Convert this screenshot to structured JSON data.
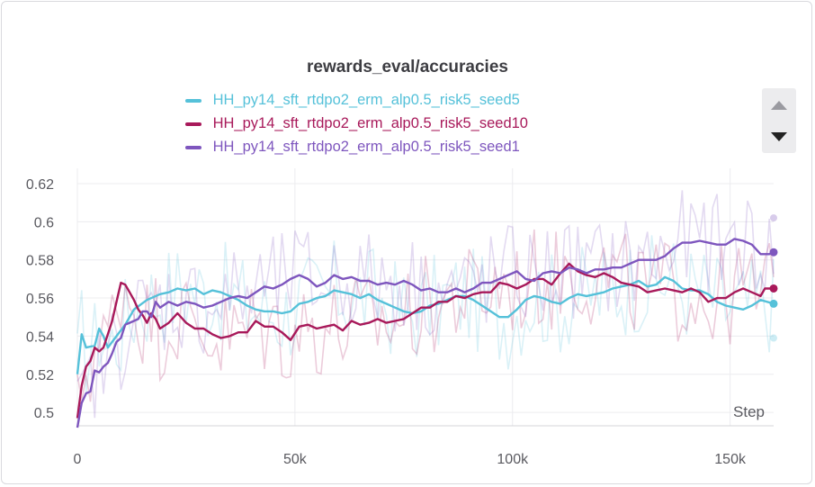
{
  "chart_data": {
    "type": "line",
    "title": "rewards_eval/accuracies",
    "xlabel": "Step",
    "ylabel": "",
    "xlim": [
      0,
      160000
    ],
    "ylim": [
      0.493,
      0.628
    ],
    "x_ticks": [
      {
        "value": 0,
        "label": "0"
      },
      {
        "value": 50000,
        "label": "50k"
      },
      {
        "value": 100000,
        "label": "100k"
      },
      {
        "value": 150000,
        "label": "150k"
      }
    ],
    "y_ticks": [
      {
        "value": 0.5,
        "label": "0.5"
      },
      {
        "value": 0.52,
        "label": "0.52"
      },
      {
        "value": 0.54,
        "label": "0.54"
      },
      {
        "value": 0.56,
        "label": "0.56"
      },
      {
        "value": 0.58,
        "label": "0.58"
      },
      {
        "value": 0.6,
        "label": "0.6"
      },
      {
        "value": 0.62,
        "label": "0.62"
      }
    ],
    "grid": true,
    "legend_position": "top",
    "series": [
      {
        "name": "HH_py14_sft_rtdpo2_erm_alp0.5_risk5_seed5",
        "color": "#55c1d9",
        "smoothed": [
          [
            0,
            0.52
          ],
          [
            1000,
            0.541
          ],
          [
            2000,
            0.534
          ],
          [
            4000,
            0.535
          ],
          [
            5000,
            0.544
          ],
          [
            6000,
            0.54
          ],
          [
            7000,
            0.534
          ],
          [
            9000,
            0.54
          ],
          [
            11000,
            0.546
          ],
          [
            13000,
            0.554
          ],
          [
            16000,
            0.559
          ],
          [
            19000,
            0.562
          ],
          [
            21000,
            0.563
          ],
          [
            23000,
            0.565
          ],
          [
            25000,
            0.564
          ],
          [
            27000,
            0.565
          ],
          [
            29000,
            0.562
          ],
          [
            31000,
            0.564
          ],
          [
            33000,
            0.563
          ],
          [
            35000,
            0.561
          ],
          [
            37000,
            0.559
          ],
          [
            39000,
            0.556
          ],
          [
            41000,
            0.554
          ],
          [
            43000,
            0.553
          ],
          [
            45000,
            0.553
          ],
          [
            47000,
            0.552
          ],
          [
            49000,
            0.553
          ],
          [
            51000,
            0.557
          ],
          [
            53000,
            0.558
          ],
          [
            55000,
            0.56
          ],
          [
            57000,
            0.561
          ],
          [
            59000,
            0.564
          ],
          [
            61000,
            0.563
          ],
          [
            63000,
            0.562
          ],
          [
            65000,
            0.56
          ],
          [
            67000,
            0.562
          ],
          [
            69000,
            0.559
          ],
          [
            71000,
            0.557
          ],
          [
            73000,
            0.555
          ],
          [
            75000,
            0.553
          ],
          [
            77000,
            0.552
          ],
          [
            79000,
            0.553
          ],
          [
            81000,
            0.556
          ],
          [
            83000,
            0.557
          ],
          [
            85000,
            0.559
          ],
          [
            87000,
            0.561
          ],
          [
            89000,
            0.561
          ],
          [
            91000,
            0.559
          ],
          [
            93000,
            0.556
          ],
          [
            95000,
            0.553
          ],
          [
            97000,
            0.55
          ],
          [
            99000,
            0.55
          ],
          [
            101000,
            0.554
          ],
          [
            103000,
            0.559
          ],
          [
            105000,
            0.561
          ],
          [
            107000,
            0.56
          ],
          [
            109000,
            0.558
          ],
          [
            111000,
            0.557
          ],
          [
            113000,
            0.56
          ],
          [
            115000,
            0.562
          ],
          [
            117000,
            0.561
          ],
          [
            119000,
            0.562
          ],
          [
            121000,
            0.563
          ],
          [
            123000,
            0.565
          ],
          [
            125000,
            0.566
          ],
          [
            127000,
            0.567
          ],
          [
            129000,
            0.569
          ],
          [
            131000,
            0.566
          ],
          [
            133000,
            0.567
          ],
          [
            135000,
            0.571
          ],
          [
            137000,
            0.569
          ],
          [
            139000,
            0.565
          ],
          [
            141000,
            0.564
          ],
          [
            143000,
            0.564
          ],
          [
            145000,
            0.562
          ],
          [
            147000,
            0.558
          ],
          [
            149000,
            0.556
          ],
          [
            151000,
            0.555
          ],
          [
            153000,
            0.554
          ],
          [
            155000,
            0.556
          ],
          [
            157000,
            0.559
          ],
          [
            160000,
            0.557
          ]
        ],
        "end_value": 0.557,
        "end_raw": 0.539
      },
      {
        "name": "HH_py14_sft_rtdpo2_erm_alp0.5_risk5_seed10",
        "color": "#a8195a",
        "smoothed": [
          [
            0,
            0.497
          ],
          [
            1000,
            0.514
          ],
          [
            2000,
            0.524
          ],
          [
            3000,
            0.527
          ],
          [
            4000,
            0.534
          ],
          [
            5000,
            0.532
          ],
          [
            6000,
            0.534
          ],
          [
            7000,
            0.541
          ],
          [
            8000,
            0.548
          ],
          [
            9000,
            0.558
          ],
          [
            10000,
            0.568
          ],
          [
            11000,
            0.567
          ],
          [
            12000,
            0.563
          ],
          [
            13000,
            0.559
          ],
          [
            14000,
            0.554
          ],
          [
            15000,
            0.551
          ],
          [
            16000,
            0.547
          ],
          [
            17000,
            0.552
          ],
          [
            18000,
            0.549
          ],
          [
            19000,
            0.544
          ],
          [
            21000,
            0.547
          ],
          [
            23000,
            0.552
          ],
          [
            25000,
            0.547
          ],
          [
            27000,
            0.544
          ],
          [
            29000,
            0.544
          ],
          [
            31000,
            0.541
          ],
          [
            33000,
            0.539
          ],
          [
            35000,
            0.54
          ],
          [
            37000,
            0.542
          ],
          [
            39000,
            0.542
          ],
          [
            41000,
            0.548
          ],
          [
            43000,
            0.545
          ],
          [
            45000,
            0.545
          ],
          [
            47000,
            0.542
          ],
          [
            49000,
            0.538
          ],
          [
            51000,
            0.545
          ],
          [
            53000,
            0.546
          ],
          [
            55000,
            0.544
          ],
          [
            57000,
            0.545
          ],
          [
            59000,
            0.546
          ],
          [
            61000,
            0.543
          ],
          [
            63000,
            0.548
          ],
          [
            65000,
            0.546
          ],
          [
            67000,
            0.547
          ],
          [
            69000,
            0.549
          ],
          [
            71000,
            0.547
          ],
          [
            73000,
            0.548
          ],
          [
            75000,
            0.549
          ],
          [
            77000,
            0.552
          ],
          [
            79000,
            0.555
          ],
          [
            81000,
            0.555
          ],
          [
            83000,
            0.558
          ],
          [
            85000,
            0.558
          ],
          [
            87000,
            0.561
          ],
          [
            89000,
            0.56
          ],
          [
            91000,
            0.562
          ],
          [
            93000,
            0.563
          ],
          [
            95000,
            0.563
          ],
          [
            97000,
            0.568
          ],
          [
            99000,
            0.567
          ],
          [
            101000,
            0.565
          ],
          [
            103000,
            0.567
          ],
          [
            105000,
            0.57
          ],
          [
            107000,
            0.57
          ],
          [
            109000,
            0.567
          ],
          [
            111000,
            0.573
          ],
          [
            113000,
            0.578
          ],
          [
            115000,
            0.574
          ],
          [
            117000,
            0.572
          ],
          [
            119000,
            0.571
          ],
          [
            121000,
            0.573
          ],
          [
            123000,
            0.571
          ],
          [
            125000,
            0.568
          ],
          [
            127000,
            0.567
          ],
          [
            129000,
            0.566
          ],
          [
            131000,
            0.563
          ],
          [
            133000,
            0.564
          ],
          [
            135000,
            0.565
          ],
          [
            137000,
            0.564
          ],
          [
            139000,
            0.563
          ],
          [
            141000,
            0.565
          ],
          [
            143000,
            0.563
          ],
          [
            145000,
            0.558
          ],
          [
            147000,
            0.56
          ],
          [
            149000,
            0.56
          ],
          [
            151000,
            0.563
          ],
          [
            153000,
            0.565
          ],
          [
            155000,
            0.563
          ],
          [
            157000,
            0.561
          ],
          [
            158000,
            0.565
          ],
          [
            160000,
            0.565
          ]
        ],
        "end_value": 0.565,
        "end_raw": 0.565
      },
      {
        "name": "HH_py14_sft_rtdpo2_erm_alp0.5_risk5_seed1",
        "color": "#7e56be",
        "smoothed": [
          [
            0,
            0.492
          ],
          [
            1000,
            0.505
          ],
          [
            2000,
            0.51
          ],
          [
            3000,
            0.511
          ],
          [
            4000,
            0.522
          ],
          [
            5000,
            0.521
          ],
          [
            6000,
            0.524
          ],
          [
            7000,
            0.526
          ],
          [
            8000,
            0.531
          ],
          [
            9000,
            0.537
          ],
          [
            10000,
            0.539
          ],
          [
            11000,
            0.546
          ],
          [
            12000,
            0.547
          ],
          [
            13000,
            0.548
          ],
          [
            14000,
            0.549
          ],
          [
            15000,
            0.553
          ],
          [
            16000,
            0.553
          ],
          [
            17000,
            0.55
          ],
          [
            18000,
            0.558
          ],
          [
            19000,
            0.555
          ],
          [
            21000,
            0.558
          ],
          [
            23000,
            0.556
          ],
          [
            25000,
            0.558
          ],
          [
            27000,
            0.557
          ],
          [
            29000,
            0.555
          ],
          [
            31000,
            0.556
          ],
          [
            33000,
            0.558
          ],
          [
            35000,
            0.56
          ],
          [
            37000,
            0.561
          ],
          [
            39000,
            0.56
          ],
          [
            41000,
            0.563
          ],
          [
            43000,
            0.566
          ],
          [
            45000,
            0.565
          ],
          [
            47000,
            0.567
          ],
          [
            49000,
            0.57
          ],
          [
            51000,
            0.572
          ],
          [
            53000,
            0.57
          ],
          [
            55000,
            0.566
          ],
          [
            57000,
            0.568
          ],
          [
            59000,
            0.572
          ],
          [
            61000,
            0.57
          ],
          [
            63000,
            0.571
          ],
          [
            65000,
            0.569
          ],
          [
            67000,
            0.569
          ],
          [
            69000,
            0.567
          ],
          [
            71000,
            0.568
          ],
          [
            73000,
            0.567
          ],
          [
            75000,
            0.569
          ],
          [
            77000,
            0.567
          ],
          [
            79000,
            0.564
          ],
          [
            81000,
            0.565
          ],
          [
            83000,
            0.563
          ],
          [
            85000,
            0.563
          ],
          [
            87000,
            0.565
          ],
          [
            89000,
            0.563
          ],
          [
            91000,
            0.565
          ],
          [
            93000,
            0.568
          ],
          [
            95000,
            0.568
          ],
          [
            97000,
            0.57
          ],
          [
            99000,
            0.572
          ],
          [
            101000,
            0.574
          ],
          [
            103000,
            0.57
          ],
          [
            105000,
            0.569
          ],
          [
            107000,
            0.573
          ],
          [
            109000,
            0.574
          ],
          [
            111000,
            0.573
          ],
          [
            113000,
            0.576
          ],
          [
            115000,
            0.575
          ],
          [
            117000,
            0.573
          ],
          [
            119000,
            0.575
          ],
          [
            121000,
            0.575
          ],
          [
            123000,
            0.576
          ],
          [
            125000,
            0.576
          ],
          [
            127000,
            0.578
          ],
          [
            129000,
            0.58
          ],
          [
            131000,
            0.58
          ],
          [
            133000,
            0.58
          ],
          [
            135000,
            0.582
          ],
          [
            137000,
            0.586
          ],
          [
            139000,
            0.589
          ],
          [
            141000,
            0.589
          ],
          [
            143000,
            0.59
          ],
          [
            145000,
            0.589
          ],
          [
            147000,
            0.588
          ],
          [
            149000,
            0.588
          ],
          [
            151000,
            0.591
          ],
          [
            153000,
            0.59
          ],
          [
            155000,
            0.588
          ],
          [
            157000,
            0.583
          ],
          [
            159000,
            0.583
          ],
          [
            160000,
            0.584
          ]
        ],
        "end_value": 0.584,
        "end_raw": 0.602
      }
    ]
  }
}
